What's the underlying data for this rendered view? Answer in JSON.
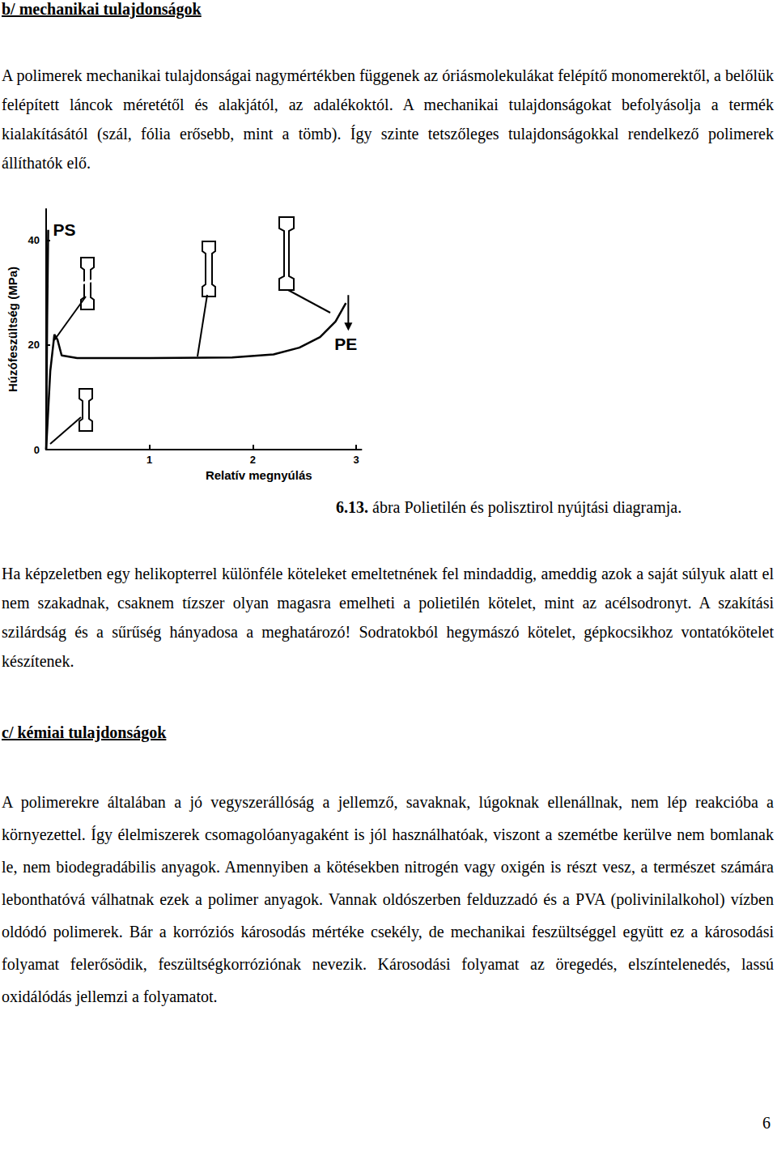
{
  "document": {
    "heading_b": "b/ mechanikai tulajdonságok",
    "paragraph_1": "A polimerek mechanikai tulajdonságai nagymértékben függenek az óriásmolekulákat felépítő monomerektől, a belőlük felépített láncok méretétől és alakjától, az adalékoktól. A mechanikai tulajdonságokat befolyásolja a termék kialakításától (szál, fólia erősebb, mint a tömb). Így szinte tetszőleges tulajdonságokkal rendelkező polimerek állíthatók elő.",
    "figure_caption": {
      "number": "6.13.",
      "text": "ábra Polietilén és polisztirol nyújtási diagramja."
    },
    "paragraph_2": "Ha képzeletben egy helikopterrel különféle köteleket emeltetnének fel mindaddig, ameddig azok a saját súlyuk alatt el nem szakadnak, csaknem tízszer olyan magasra emelheti a polietilén kötelet, mint az acélsodronyt. A szakítási szilárdság és a sűrűség hányadosa a meghatározó! Sodratokból hegymászó kötelet, gépkocsikhoz vontatókötelet készítenek.",
    "heading_c": "c/ kémiai tulajdonságok",
    "paragraph_3": "A polimerekre általában a jó vegyszerállóság a jellemző, savaknak, lúgoknak ellenállnak, nem lép reakcióba a környezettel. Így élelmiszerek csomagolóanyagaként is jól használhatóak, viszont a szemétbe kerülve nem bomlanak le, nem biodegradábilis anyagok. Amennyiben a kötésekben nitrogén vagy oxigén is részt vesz, a természet számára lebonthatóvá válhatnak ezek a polimer anyagok. Vannak oldószerben felduzzadó és a PVA (polivinilalkohol) vízben oldódó polimerek. Bár a korróziós károsodás mértéke csekély, de mechanikai feszültséggel együtt ez a károsodási folyamat felerősödik, feszültségkorróziónak nevezik. Károsodási folyamat az öregedés, elszíntelenedés, lassú oxidálódás jellemzi a folyamatot.",
    "page_number": "6"
  },
  "chart_data": {
    "type": "line",
    "x_label": "Relatív megnyúlás",
    "y_label": "Húzófeszültség (MPa)",
    "series": [
      {
        "name": "PS",
        "color": "#000000",
        "x": [
          0,
          0.01,
          0.02
        ],
        "values": [
          0,
          25,
          42
        ]
      },
      {
        "name": "PE",
        "color": "#000000",
        "x": [
          0,
          0.04,
          0.08,
          0.11,
          0.15,
          0.3,
          1,
          1.8,
          2.2,
          2.45,
          2.65,
          2.8,
          2.9
        ],
        "values": [
          0,
          15,
          22,
          21,
          18,
          17.5,
          17.5,
          17.6,
          18.2,
          19.5,
          21.5,
          24.5,
          28
        ]
      }
    ],
    "xlim": [
      0,
      3.05
    ],
    "ylim": [
      0,
      46
    ],
    "xticks": [
      1,
      2,
      3
    ],
    "yticks": [
      0,
      20,
      40
    ],
    "grid": false
  }
}
